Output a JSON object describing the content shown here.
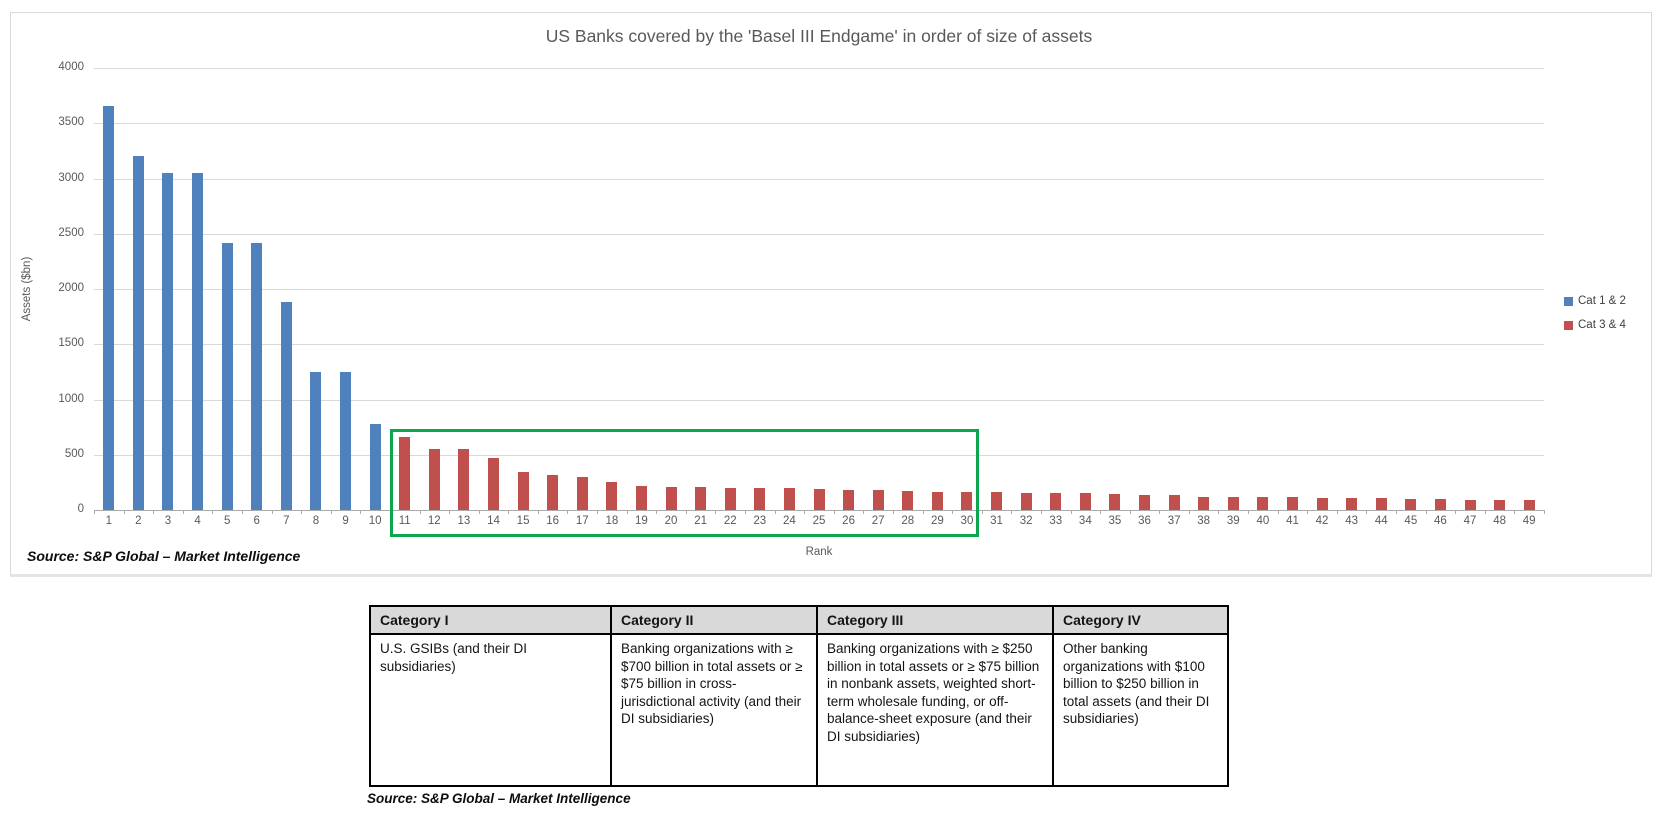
{
  "chart_data": {
    "type": "bar",
    "title": "US Banks covered by the 'Basel III Endgame' in order of size of assets",
    "xlabel": "Rank",
    "ylabel": "Assets ($bn)",
    "ylim": [
      0,
      4000
    ],
    "ytick_interval": 500,
    "yticks": [
      0,
      500,
      1000,
      1500,
      2000,
      2500,
      3000,
      3500,
      4000
    ],
    "grid": true,
    "legend_position": "right",
    "source": "Source: S&P Global – Market Intelligence",
    "categories": [
      "1",
      "2",
      "3",
      "4",
      "5",
      "6",
      "7",
      "8",
      "9",
      "10",
      "11",
      "12",
      "13",
      "14",
      "15",
      "16",
      "17",
      "18",
      "19",
      "20",
      "21",
      "22",
      "23",
      "24",
      "25",
      "26",
      "27",
      "28",
      "29",
      "30",
      "31",
      "32",
      "33",
      "34",
      "35",
      "36",
      "37",
      "38",
      "39",
      "40",
      "41",
      "42",
      "43",
      "44",
      "45",
      "46",
      "47",
      "48",
      "49"
    ],
    "series": [
      {
        "name": "Cat 1 & 2",
        "color": "#4F81BD",
        "start_rank": 1,
        "values": [
          3660,
          3200,
          3050,
          3050,
          2420,
          2420,
          1880,
          1250,
          1250,
          780
        ]
      },
      {
        "name": "Cat 3 & 4",
        "color": "#C0504D",
        "start_rank": 11,
        "values": [
          660,
          550,
          550,
          475,
          340,
          320,
          300,
          250,
          220,
          210,
          205,
          200,
          200,
          195,
          190,
          185,
          180,
          175,
          165,
          160,
          160,
          155,
          150,
          150,
          145,
          140,
          140,
          120,
          115,
          115,
          115,
          110,
          110,
          105,
          100,
          100,
          90,
          90,
          90
        ]
      }
    ],
    "highlight_box": {
      "start_rank": 11,
      "end_rank": 30,
      "color": "#0CA64F"
    }
  },
  "table": {
    "headers": [
      "Category I",
      "Category II",
      "Category III",
      "Category IV"
    ],
    "rows": [
      [
        "U.S. GSIBs (and their DI subsidiaries)",
        "Banking organizations with ≥ $700 billion in total assets or ≥ $75 billion in cross-jurisdictional activity (and their DI subsidiaries)",
        "Banking organizations with ≥ $250 billion in total assets or ≥ $75 billion in nonbank assets, weighted short-term wholesale funding, or off-balance-sheet exposure (and their DI subsidiaries)",
        "Other banking organizations with $100 billion to $250 billion in total assets (and their DI subsidiaries)"
      ]
    ],
    "source": "Source: S&P Global – Market Intelligence"
  }
}
